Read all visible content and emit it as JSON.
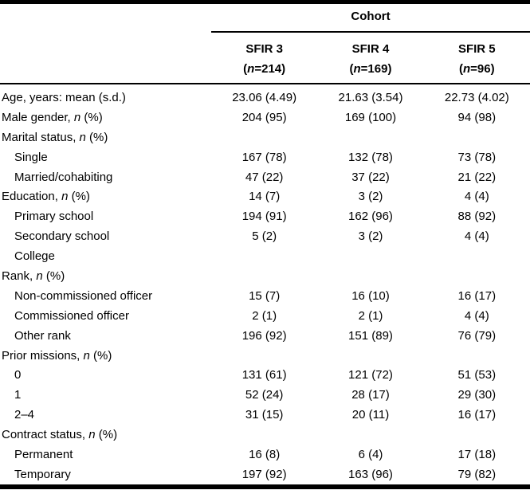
{
  "table": {
    "group_header": "Cohort",
    "columns": [
      {
        "name": "SFIR 3",
        "n_pre": "(",
        "n_it": "n",
        "n_post": "=214)"
      },
      {
        "name": "SFIR 4",
        "n_pre": "(",
        "n_it": "n",
        "n_post": "=169)"
      },
      {
        "name": "SFIR 5",
        "n_pre": "(",
        "n_it": "n",
        "n_post": "=96)"
      }
    ],
    "rows": [
      {
        "label_pre": "Age, years: mean (s.d.)",
        "label_it": "",
        "label_post": "",
        "indent": false,
        "values": [
          "23.06 (4.49)",
          "21.63 (3.54)",
          "22.73 (4.02)"
        ]
      },
      {
        "label_pre": "Male gender, ",
        "label_it": "n",
        "label_post": " (%)",
        "indent": false,
        "values": [
          "204 (95)",
          "169 (100)",
          "94 (98)"
        ]
      },
      {
        "label_pre": "Marital status, ",
        "label_it": "n",
        "label_post": " (%)",
        "indent": false,
        "values": [
          "",
          "",
          ""
        ]
      },
      {
        "label_pre": "Single",
        "label_it": "",
        "label_post": "",
        "indent": true,
        "values": [
          "167 (78)",
          "132 (78)",
          "73 (78)"
        ]
      },
      {
        "label_pre": "Married/cohabiting",
        "label_it": "",
        "label_post": "",
        "indent": true,
        "values": [
          "47 (22)",
          "37 (22)",
          "21 (22)"
        ]
      },
      {
        "label_pre": "Education, ",
        "label_it": "n",
        "label_post": " (%)",
        "indent": false,
        "values": [
          "14 (7)",
          "3 (2)",
          "4 (4)"
        ]
      },
      {
        "label_pre": "Primary school",
        "label_it": "",
        "label_post": "",
        "indent": true,
        "values": [
          "194 (91)",
          "162 (96)",
          "88 (92)"
        ]
      },
      {
        "label_pre": "Secondary school",
        "label_it": "",
        "label_post": "",
        "indent": true,
        "values": [
          "5 (2)",
          "3 (2)",
          "4 (4)"
        ]
      },
      {
        "label_pre": "College",
        "label_it": "",
        "label_post": "",
        "indent": true,
        "values": [
          "",
          "",
          ""
        ]
      },
      {
        "label_pre": "Rank, ",
        "label_it": "n",
        "label_post": " (%)",
        "indent": false,
        "values": [
          "",
          "",
          ""
        ]
      },
      {
        "label_pre": "Non-commissioned officer",
        "label_it": "",
        "label_post": "",
        "indent": true,
        "values": [
          "15 (7)",
          "16 (10)",
          "16 (17)"
        ]
      },
      {
        "label_pre": "Commissioned officer",
        "label_it": "",
        "label_post": "",
        "indent": true,
        "values": [
          "2 (1)",
          "2 (1)",
          "4 (4)"
        ]
      },
      {
        "label_pre": "Other rank",
        "label_it": "",
        "label_post": "",
        "indent": true,
        "values": [
          "196 (92)",
          "151 (89)",
          "76 (79)"
        ]
      },
      {
        "label_pre": "Prior missions, ",
        "label_it": "n",
        "label_post": " (%)",
        "indent": false,
        "values": [
          "",
          "",
          ""
        ]
      },
      {
        "label_pre": "0",
        "label_it": "",
        "label_post": "",
        "indent": true,
        "values": [
          "131 (61)",
          "121 (72)",
          "51 (53)"
        ]
      },
      {
        "label_pre": "1",
        "label_it": "",
        "label_post": "",
        "indent": true,
        "values": [
          "52 (24)",
          "28 (17)",
          "29 (30)"
        ]
      },
      {
        "label_pre": "2–4",
        "label_it": "",
        "label_post": "",
        "indent": true,
        "values": [
          "31 (15)",
          "20 (11)",
          "16 (17)"
        ]
      },
      {
        "label_pre": "Contract status, ",
        "label_it": "n",
        "label_post": " (%)",
        "indent": false,
        "values": [
          "",
          "",
          ""
        ]
      },
      {
        "label_pre": "Permanent",
        "label_it": "",
        "label_post": "",
        "indent": true,
        "values": [
          "16 (8)",
          "6 (4)",
          "17 (18)"
        ]
      },
      {
        "label_pre": "Temporary",
        "label_it": "",
        "label_post": "",
        "indent": true,
        "values": [
          "197 (92)",
          "163 (96)",
          "79 (82)"
        ]
      }
    ],
    "colors": {
      "text": "#000000",
      "background": "#ffffff",
      "rule": "#000000"
    }
  }
}
